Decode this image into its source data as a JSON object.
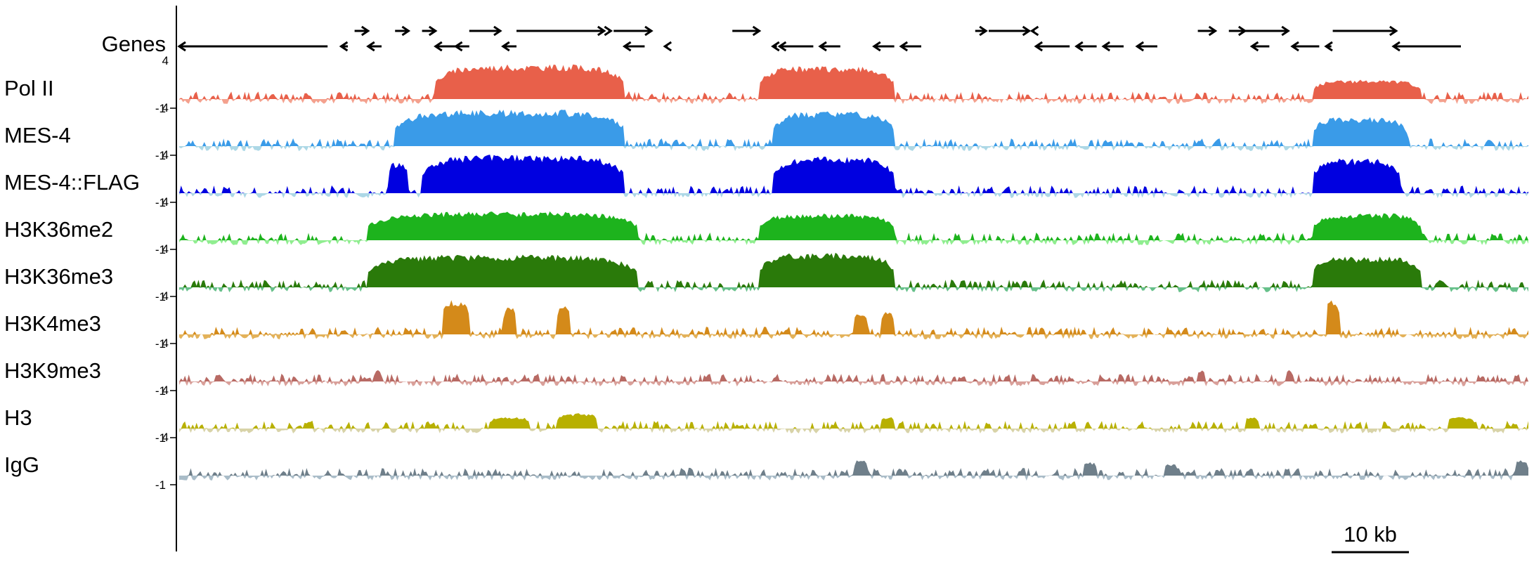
{
  "genes": {
    "label": "Genes",
    "features": [
      {
        "start": 0.0,
        "end": 0.11,
        "strand": "-",
        "row": "bottom"
      },
      {
        "start": 0.12,
        "end": 0.125,
        "strand": "-",
        "row": "bottom"
      },
      {
        "start": 0.13,
        "end": 0.14,
        "strand": "+",
        "row": "top"
      },
      {
        "start": 0.14,
        "end": 0.15,
        "strand": "-",
        "row": "bottom"
      },
      {
        "start": 0.16,
        "end": 0.17,
        "strand": "+",
        "row": "top"
      },
      {
        "start": 0.18,
        "end": 0.19,
        "strand": "+",
        "row": "top"
      },
      {
        "start": 0.19,
        "end": 0.205,
        "strand": "-",
        "row": "bottom"
      },
      {
        "start": 0.205,
        "end": 0.215,
        "strand": "-",
        "row": "bottom"
      },
      {
        "start": 0.215,
        "end": 0.238,
        "strand": "+",
        "row": "top"
      },
      {
        "start": 0.24,
        "end": 0.25,
        "strand": "-",
        "row": "bottom"
      },
      {
        "start": 0.25,
        "end": 0.315,
        "strand": "+",
        "row": "top"
      },
      {
        "start": 0.318,
        "end": 0.32,
        "strand": "+",
        "row": "top"
      },
      {
        "start": 0.322,
        "end": 0.35,
        "strand": "+",
        "row": "top"
      },
      {
        "start": 0.33,
        "end": 0.345,
        "strand": "-",
        "row": "bottom"
      },
      {
        "start": 0.36,
        "end": 0.362,
        "strand": "-",
        "row": "bottom"
      },
      {
        "start": 0.41,
        "end": 0.43,
        "strand": "+",
        "row": "top"
      },
      {
        "start": 0.44,
        "end": 0.443,
        "strand": "-",
        "row": "bottom"
      },
      {
        "start": 0.445,
        "end": 0.47,
        "strand": "-",
        "row": "bottom"
      },
      {
        "start": 0.475,
        "end": 0.49,
        "strand": "-",
        "row": "bottom"
      },
      {
        "start": 0.515,
        "end": 0.53,
        "strand": "-",
        "row": "bottom"
      },
      {
        "start": 0.535,
        "end": 0.55,
        "strand": "-",
        "row": "bottom"
      },
      {
        "start": 0.59,
        "end": 0.598,
        "strand": "+",
        "row": "top"
      },
      {
        "start": 0.6,
        "end": 0.63,
        "strand": "+",
        "row": "top"
      },
      {
        "start": 0.632,
        "end": 0.634,
        "strand": "-",
        "row": "top"
      },
      {
        "start": 0.635,
        "end": 0.66,
        "strand": "-",
        "row": "bottom"
      },
      {
        "start": 0.665,
        "end": 0.68,
        "strand": "-",
        "row": "bottom"
      },
      {
        "start": 0.685,
        "end": 0.7,
        "strand": "-",
        "row": "bottom"
      },
      {
        "start": 0.71,
        "end": 0.725,
        "strand": "-",
        "row": "bottom"
      },
      {
        "start": 0.755,
        "end": 0.768,
        "strand": "+",
        "row": "top"
      },
      {
        "start": 0.778,
        "end": 0.79,
        "strand": "+",
        "row": "top"
      },
      {
        "start": 0.79,
        "end": 0.822,
        "strand": "+",
        "row": "top"
      },
      {
        "start": 0.795,
        "end": 0.808,
        "strand": "-",
        "row": "bottom"
      },
      {
        "start": 0.825,
        "end": 0.845,
        "strand": "-",
        "row": "bottom"
      },
      {
        "start": 0.85,
        "end": 0.854,
        "strand": "-",
        "row": "bottom"
      },
      {
        "start": 0.855,
        "end": 0.902,
        "strand": "+",
        "row": "top"
      },
      {
        "start": 0.9,
        "end": 0.95,
        "strand": "-",
        "row": "bottom"
      }
    ]
  },
  "axis": {
    "max_label": "4",
    "min_label": "-1"
  },
  "tracks": [
    {
      "label": "Pol II",
      "color": "#e8604a",
      "negative_color": "#f4a18e",
      "peaks": [
        [
          0.19,
          0.33,
          0.9
        ],
        [
          0.43,
          0.53,
          0.85
        ],
        [
          0.84,
          0.92,
          0.5
        ]
      ]
    },
    {
      "label": "MES-4",
      "color": "#3a9be8",
      "negative_color": "#add8e6",
      "peaks": [
        [
          0.16,
          0.33,
          0.95
        ],
        [
          0.44,
          0.53,
          0.9
        ],
        [
          0.84,
          0.91,
          0.75
        ]
      ]
    },
    {
      "label": "MES-4::FLAG",
      "color": "#0000e0",
      "negative_color": "#add8e6",
      "peaks": [
        [
          0.155,
          0.17,
          0.8
        ],
        [
          0.18,
          0.33,
          1.0
        ],
        [
          0.44,
          0.53,
          0.95
        ],
        [
          0.84,
          0.905,
          0.9
        ]
      ]
    },
    {
      "label": "H3K36me2",
      "color": "#1db31d",
      "negative_color": "#90ee90",
      "peaks": [
        [
          0.14,
          0.34,
          0.75
        ],
        [
          0.43,
          0.53,
          0.7
        ],
        [
          0.84,
          0.92,
          0.7
        ]
      ]
    },
    {
      "label": "H3K36me3",
      "color": "#2a7a0a",
      "negative_color": "#66c08a",
      "peaks": [
        [
          0.14,
          0.34,
          0.85
        ],
        [
          0.43,
          0.53,
          0.9
        ],
        [
          0.84,
          0.92,
          0.8
        ]
      ]
    },
    {
      "label": "H3K4me3",
      "color": "#d48a1a",
      "negative_color": "#e3b25a",
      "peaks": [
        [
          0.195,
          0.215,
          0.9
        ],
        [
          0.24,
          0.25,
          0.7
        ],
        [
          0.28,
          0.29,
          0.8
        ],
        [
          0.5,
          0.51,
          0.6
        ],
        [
          0.52,
          0.53,
          0.6
        ],
        [
          0.85,
          0.86,
          0.9
        ]
      ]
    },
    {
      "label": "H3K9me3",
      "color": "#b86a64",
      "negative_color": "#d9a09a",
      "peaks": [
        [
          0.145,
          0.15,
          0.3
        ],
        [
          0.755,
          0.76,
          0.3
        ],
        [
          0.82,
          0.825,
          0.3
        ]
      ]
    },
    {
      "label": "H3",
      "color": "#b8b000",
      "negative_color": "#d8d3a8",
      "peaks": [
        [
          0.28,
          0.31,
          0.4
        ],
        [
          0.23,
          0.26,
          0.3
        ],
        [
          0.52,
          0.53,
          0.3
        ],
        [
          0.79,
          0.8,
          0.3
        ],
        [
          0.94,
          0.96,
          0.3
        ]
      ]
    },
    {
      "label": "IgG",
      "color": "#6f7f8a",
      "negative_color": "#a9bcc8",
      "peaks": [
        [
          0.5,
          0.51,
          0.4
        ],
        [
          0.67,
          0.68,
          0.35
        ],
        [
          0.73,
          0.74,
          0.3
        ],
        [
          0.99,
          1.0,
          0.4
        ]
      ]
    }
  ],
  "scale_bar": {
    "label": "10 kb"
  }
}
